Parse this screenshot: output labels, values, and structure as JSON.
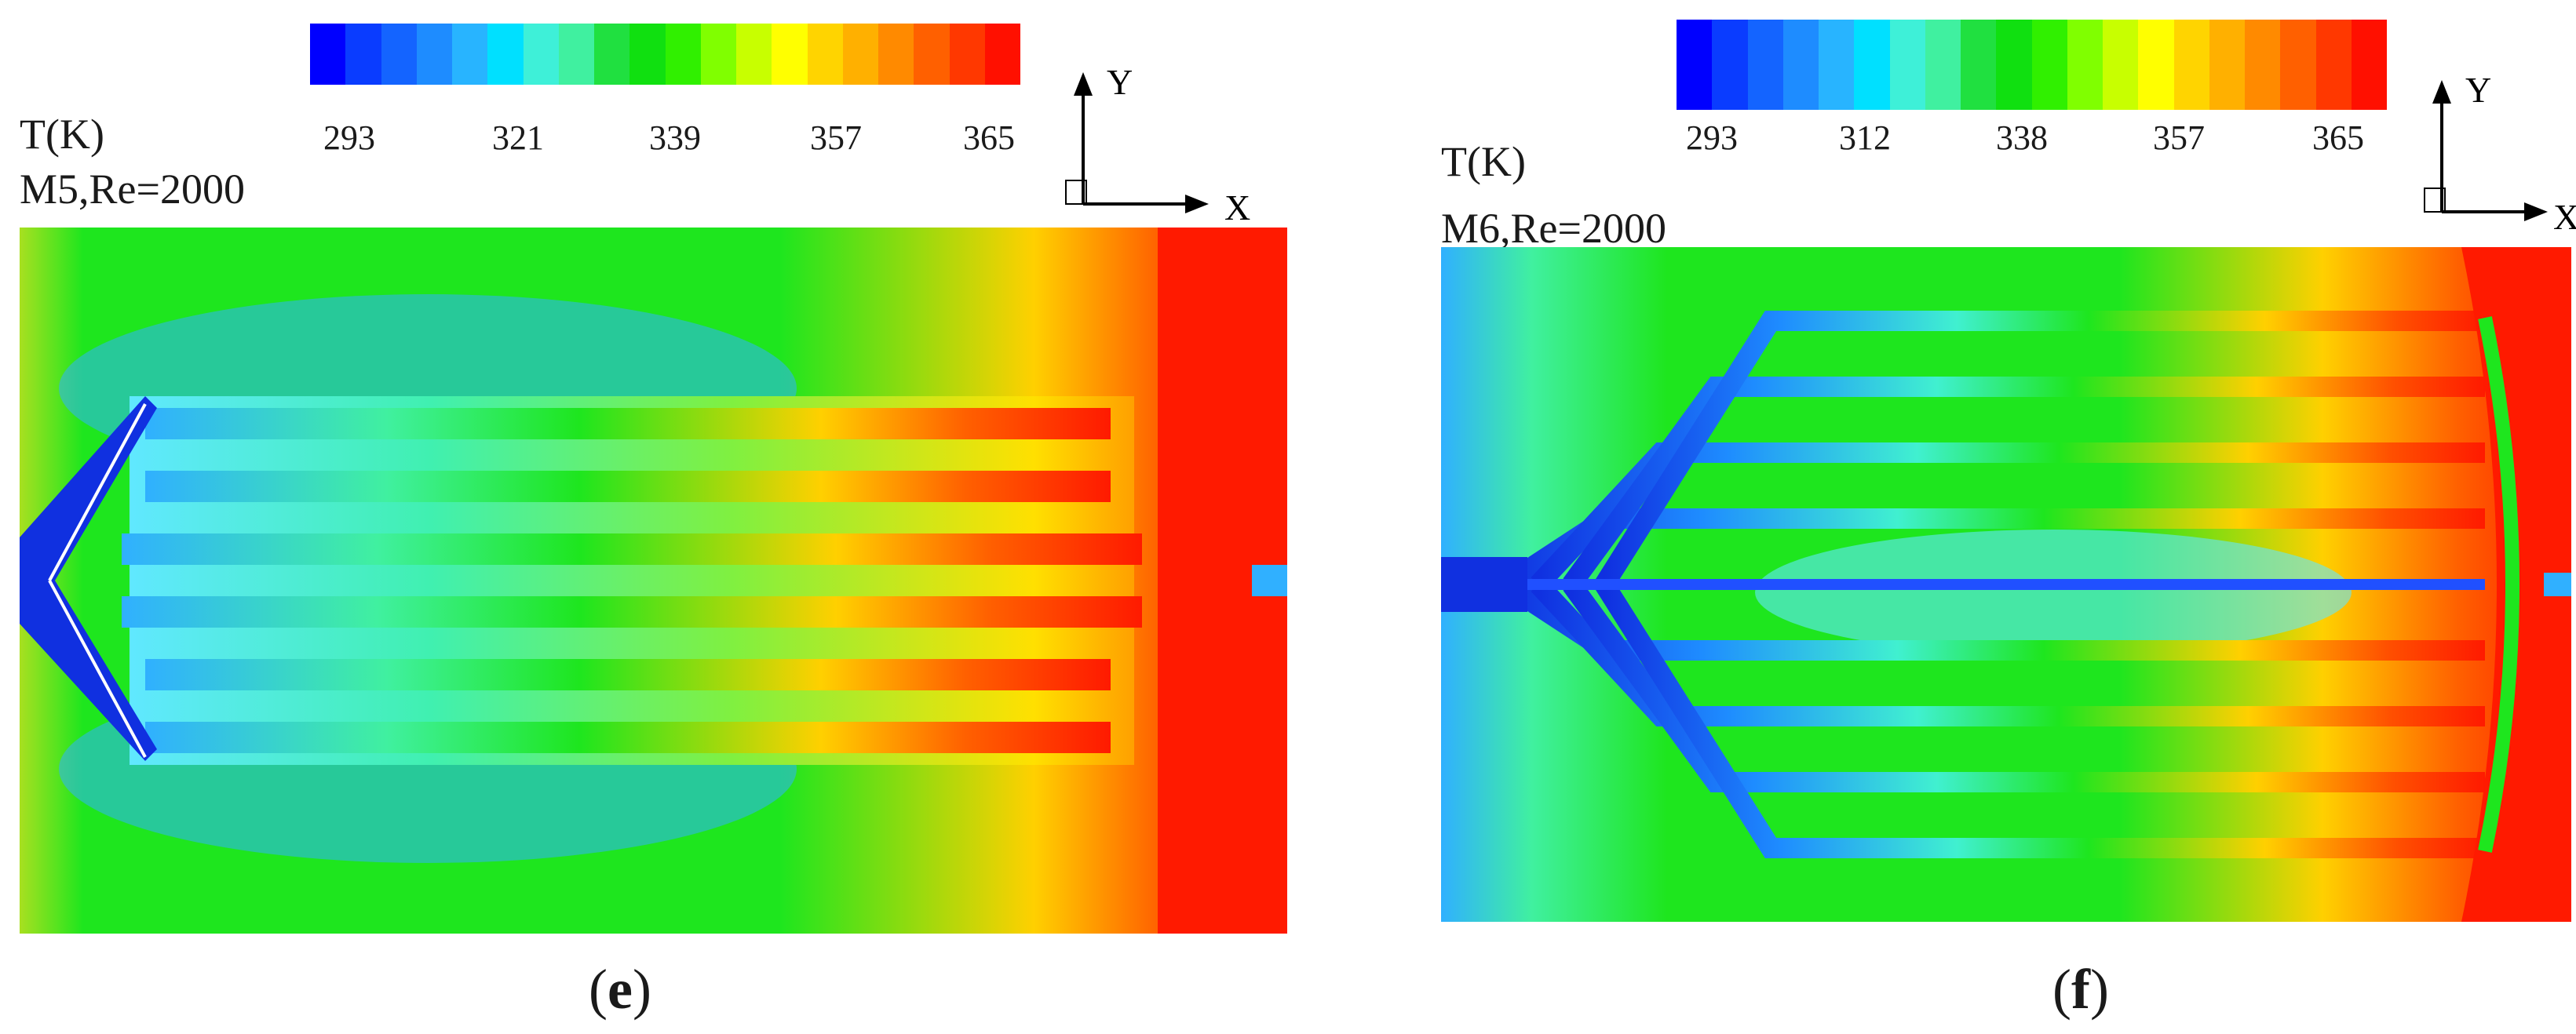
{
  "colors": {
    "scale": [
      "#0000ff",
      "#0a3cff",
      "#1464ff",
      "#1e8cff",
      "#28b4ff",
      "#00e0ff",
      "#3ef0d8",
      "#40f0a0",
      "#20e040",
      "#10e010",
      "#30f000",
      "#80ff00",
      "#c8ff00",
      "#ffff00",
      "#ffd400",
      "#ffb000",
      "#ff8a00",
      "#ff6000",
      "#ff3800",
      "#ff1000"
    ],
    "field_base": "#1ee61e",
    "hot": "#ff1a00",
    "cold": "#1030e0",
    "cool": "#30b0ff"
  },
  "panels": [
    {
      "id": "e",
      "variable": "T(K)",
      "case": "M5,Re=2000",
      "ticks": [
        "293",
        "321",
        "339",
        "357",
        "365"
      ],
      "axis_y": "Y",
      "axis_x": "X",
      "caption": "e"
    },
    {
      "id": "f",
      "variable": "T(K)",
      "case": "M6,Re=2000",
      "ticks": [
        "293",
        "312",
        "338",
        "357",
        "365"
      ],
      "axis_y": "Y",
      "axis_x": "X",
      "caption": "f"
    }
  ]
}
